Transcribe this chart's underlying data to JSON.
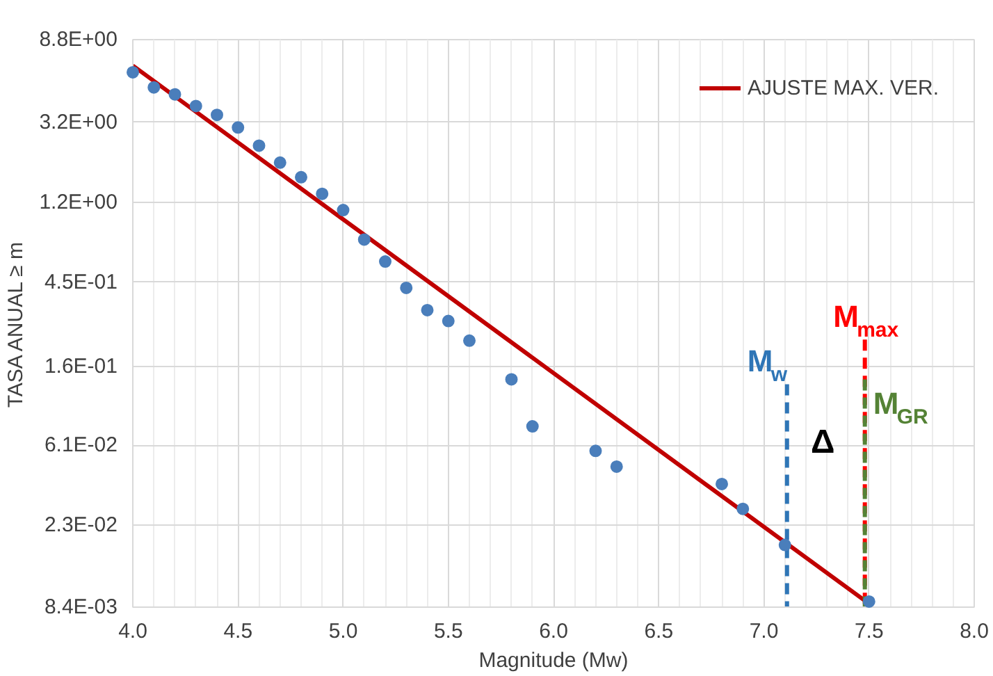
{
  "chart_data": {
    "type": "scatter",
    "xlabel": "Magnitude (Mw)",
    "ylabel": "TASA ANUAL ≥ m",
    "series": [
      {
        "marker": "circle",
        "color": "#4a7ebb",
        "x": [
          4.0,
          4.1,
          4.2,
          4.3,
          4.4,
          4.5,
          4.6,
          4.7,
          4.8,
          4.9,
          5.0,
          5.1,
          5.2,
          5.3,
          5.4,
          5.5,
          5.6,
          5.8,
          5.9,
          6.2,
          6.3,
          6.8,
          6.9,
          7.1,
          7.5
        ],
        "values": [
          5.9,
          4.9,
          4.5,
          3.9,
          3.5,
          3.0,
          2.4,
          1.95,
          1.63,
          1.33,
          1.09,
          0.76,
          0.58,
          0.42,
          0.32,
          0.28,
          0.22,
          0.137,
          0.077,
          0.057,
          0.047,
          0.038,
          0.028,
          0.018,
          0.009
        ]
      },
      {
        "type": "line",
        "name": "AJUSTE MAX. VER.",
        "color": "#c00000",
        "x": [
          4.0,
          7.48
        ],
        "values": [
          6.4,
          0.0091
        ]
      },
      {
        "type": "line",
        "name": "M$_{w}$",
        "color": "#2e75b6",
        "line_style": "dashed",
        "x": [
          7.11,
          7.11
        ],
        "values": [
          0.129,
          0.0084
        ]
      },
      {
        "type": "line",
        "name": "M$_{max}$",
        "color": "#ff0000",
        "line_style": "dashed",
        "x": [
          7.48,
          7.48
        ],
        "values": [
          0.223,
          0.0084
        ]
      },
      {
        "type": "line",
        "name": "M$_{GR}$",
        "color": "#548235",
        "line_style": "dashed",
        "x": [
          7.48,
          7.48
        ],
        "values": [
          0.137,
          0.0084
        ]
      }
    ],
    "annotations": [
      "Δ"
    ],
    "log": "y",
    "xlim": [
      4.0,
      8.0
    ],
    "xticks": [
      {
        "value": 4.0,
        "label": "4.0"
      },
      {
        "value": 4.5,
        "label": "4.5"
      },
      {
        "value": 5.0,
        "label": "5.0"
      },
      {
        "value": 5.5,
        "label": "5.5"
      },
      {
        "value": 6.0,
        "label": "6.0"
      },
      {
        "value": 6.5,
        "label": "6.5"
      },
      {
        "value": 7.0,
        "label": "7.0"
      },
      {
        "value": 7.5,
        "label": "7.5"
      },
      {
        "value": 8.0,
        "label": "8.0"
      }
    ],
    "ylim": [
      0.0084,
      8.8
    ],
    "yticks": [
      {
        "value": 0.0084,
        "label": "8.4E-03"
      },
      {
        "value": 0.023,
        "label": "2.3E-02"
      },
      {
        "value": 0.061,
        "label": "6.1E-02"
      },
      {
        "value": 0.16,
        "label": "1.6E-01"
      },
      {
        "value": 0.45,
        "label": "4.5E-01"
      },
      {
        "value": 1.2,
        "label": "1.2E+00"
      },
      {
        "value": 3.2,
        "label": "3.2E+00"
      },
      {
        "value": 8.8,
        "label": "8.8E+00"
      }
    ],
    "grid": true,
    "legend": "top right"
  }
}
